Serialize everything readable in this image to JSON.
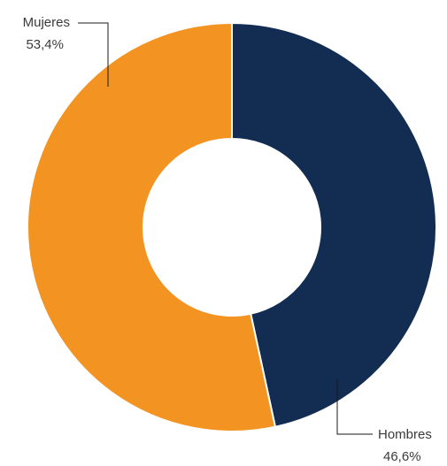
{
  "chart_data": {
    "type": "pie",
    "donut": true,
    "categories": [
      "Hombres",
      "Mujeres"
    ],
    "values": [
      46.6,
      53.4
    ],
    "value_labels": [
      "46,6%",
      "53,4%"
    ],
    "colors": [
      "#132c51",
      "#f39322"
    ],
    "title": "",
    "legend": "none",
    "data_labels": "outside with leader lines"
  }
}
